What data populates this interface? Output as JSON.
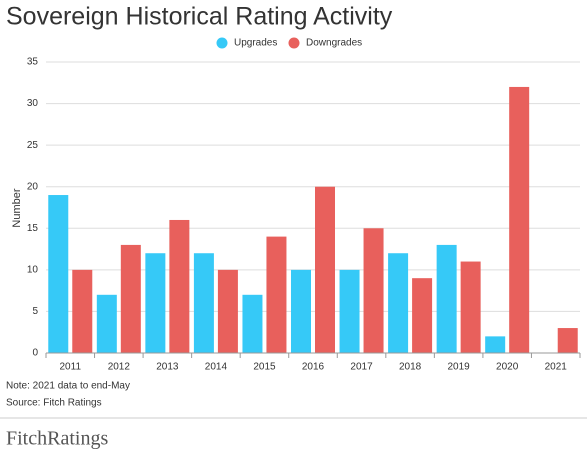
{
  "chart_data": {
    "type": "bar",
    "title": "Sovereign Historical Rating Activity",
    "y_label": "Number",
    "categories": [
      "2011",
      "2012",
      "2013",
      "2014",
      "2015",
      "2016",
      "2017",
      "2018",
      "2019",
      "2020",
      "2021"
    ],
    "series": [
      {
        "name": "Upgrades",
        "color": "#36c9f7",
        "values": [
          19,
          7,
          12,
          12,
          7,
          10,
          10,
          12,
          13,
          2,
          0
        ]
      },
      {
        "name": "Downgrades",
        "color": "#e8605c",
        "values": [
          10,
          13,
          16,
          10,
          14,
          20,
          15,
          9,
          11,
          32,
          3
        ]
      }
    ],
    "ylim": [
      0,
      35
    ],
    "yticks": [
      0,
      5,
      10,
      15,
      20,
      25,
      30,
      35
    ],
    "grid": true,
    "note": "Note: 2021 data to end-May",
    "source": "Source: Fitch Ratings",
    "brand": "FitchRatings"
  }
}
